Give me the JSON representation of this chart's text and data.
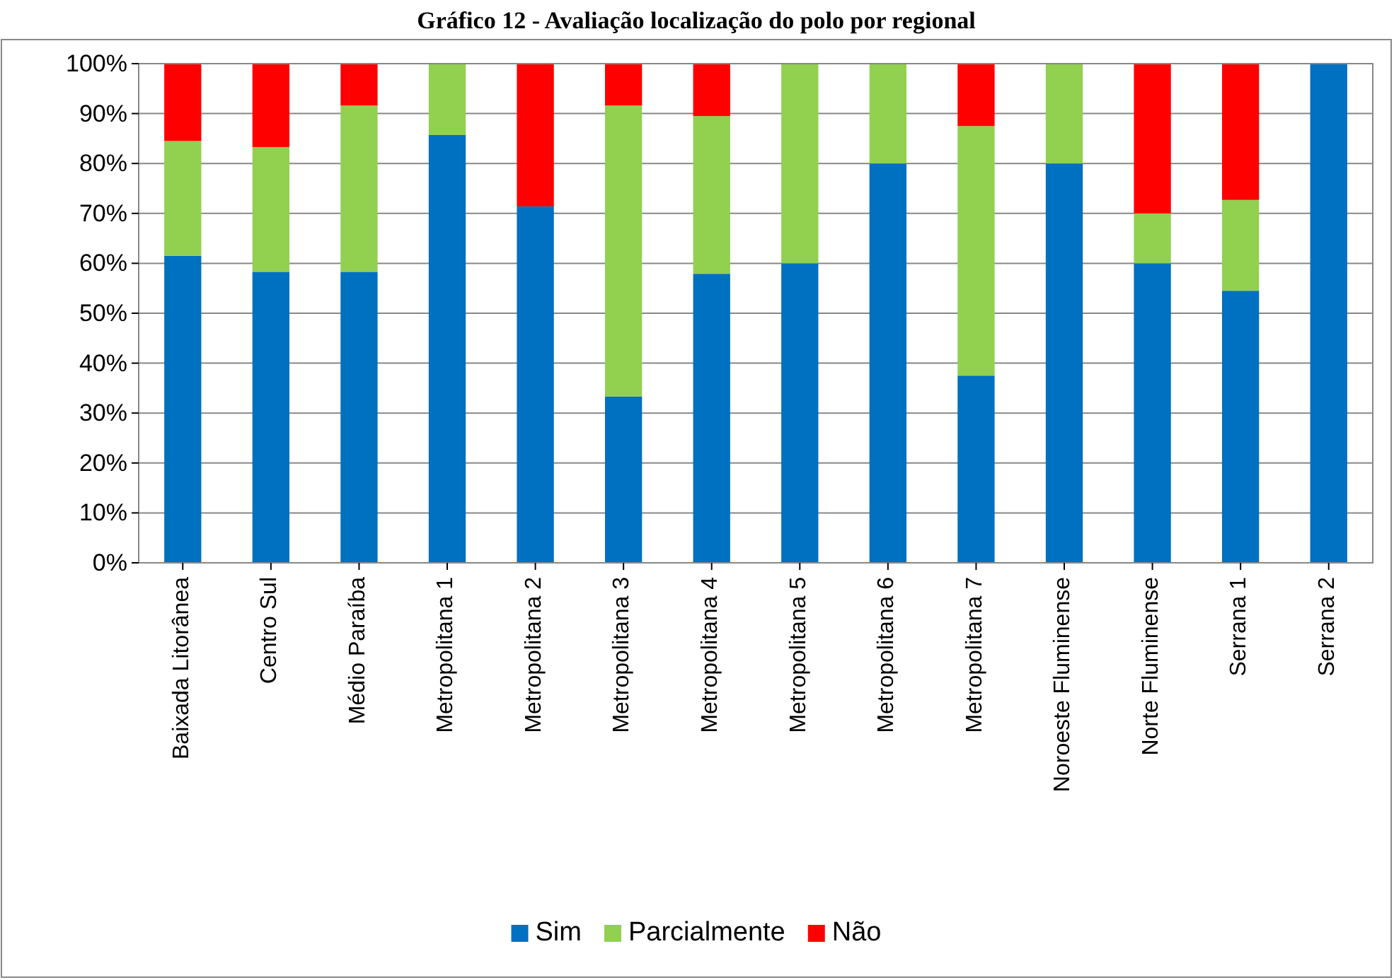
{
  "chart_data": {
    "type": "bar",
    "title": "Gráfico 12 - Avaliação localização do polo por regional",
    "stacked": true,
    "categories": [
      "Baixada Litorânea",
      "Centro Sul",
      "Médio Paraíba",
      "Metropolitana 1",
      "Metropolitana 2",
      "Metropolitana 3",
      "Metropolitana 4",
      "Metropolitana 5",
      "Metropolitana 6",
      "Metropolitana 7",
      "Noroeste Fluminense",
      "Norte Fluminense",
      "Serrana 1",
      "Serrana 2"
    ],
    "series": [
      {
        "name": "Sim",
        "color": "#0070c0",
        "values": [
          61.5,
          58.3,
          58.3,
          85.7,
          71.4,
          33.3,
          57.9,
          60,
          80,
          37.5,
          80,
          60,
          54.5,
          100
        ]
      },
      {
        "name": "Parcialmente",
        "color": "#92d050",
        "values": [
          23,
          25,
          33.3,
          14.3,
          0,
          58.3,
          31.6,
          40,
          20,
          50,
          20,
          10,
          18.2,
          0
        ]
      },
      {
        "name": "Não",
        "color": "#ff0000",
        "values": [
          15.5,
          16.7,
          8.4,
          0,
          28.6,
          8.4,
          10.5,
          0,
          0,
          12.5,
          0,
          30,
          27.3,
          0
        ]
      }
    ],
    "ylim": [
      0,
      100
    ],
    "yticks": [
      {
        "value": 0,
        "label": "0%"
      },
      {
        "value": 10,
        "label": "10%"
      },
      {
        "value": 20,
        "label": "20%"
      },
      {
        "value": 30,
        "label": "30%"
      },
      {
        "value": 40,
        "label": "40%"
      },
      {
        "value": 50,
        "label": "50%"
      },
      {
        "value": 60,
        "label": "60%"
      },
      {
        "value": 70,
        "label": "70%"
      },
      {
        "value": 80,
        "label": "80%"
      },
      {
        "value": 90,
        "label": "90%"
      },
      {
        "value": 100,
        "label": "100%"
      }
    ],
    "grid": "y",
    "legend": "bottom"
  }
}
